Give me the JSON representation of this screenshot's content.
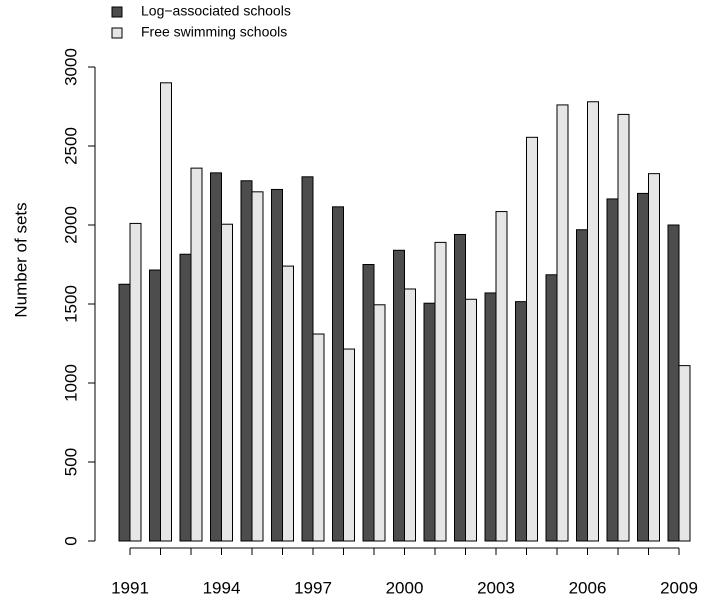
{
  "chart_data": {
    "type": "grouped-bar",
    "y_label": "Number of sets",
    "categories": [
      "1991",
      null,
      null,
      "1994",
      null,
      null,
      "1997",
      null,
      null,
      "2000",
      null,
      null,
      "2003",
      null,
      null,
      "2006",
      null,
      null,
      "2009"
    ],
    "series": [
      {
        "name": "Log−associated schools",
        "color": "#4d4d4d",
        "values": [
          1625,
          1715,
          1815,
          2330,
          2280,
          2225,
          2305,
          2115,
          1750,
          1840,
          1505,
          1940,
          1570,
          1515,
          1685,
          1970,
          2165,
          2200,
          2000
        ]
      },
      {
        "name": "Free swimming schools",
        "color": "#e6e6e6",
        "values": [
          2010,
          2900,
          2360,
          2005,
          2210,
          1740,
          1310,
          1215,
          1495,
          1595,
          1890,
          1530,
          2085,
          2555,
          2760,
          2780,
          2700,
          2325,
          1110
        ]
      }
    ],
    "ylim": [
      0,
      3000
    ],
    "yticks": [
      0,
      500,
      1000,
      1500,
      2000,
      2500,
      3000
    ],
    "grid": false
  }
}
